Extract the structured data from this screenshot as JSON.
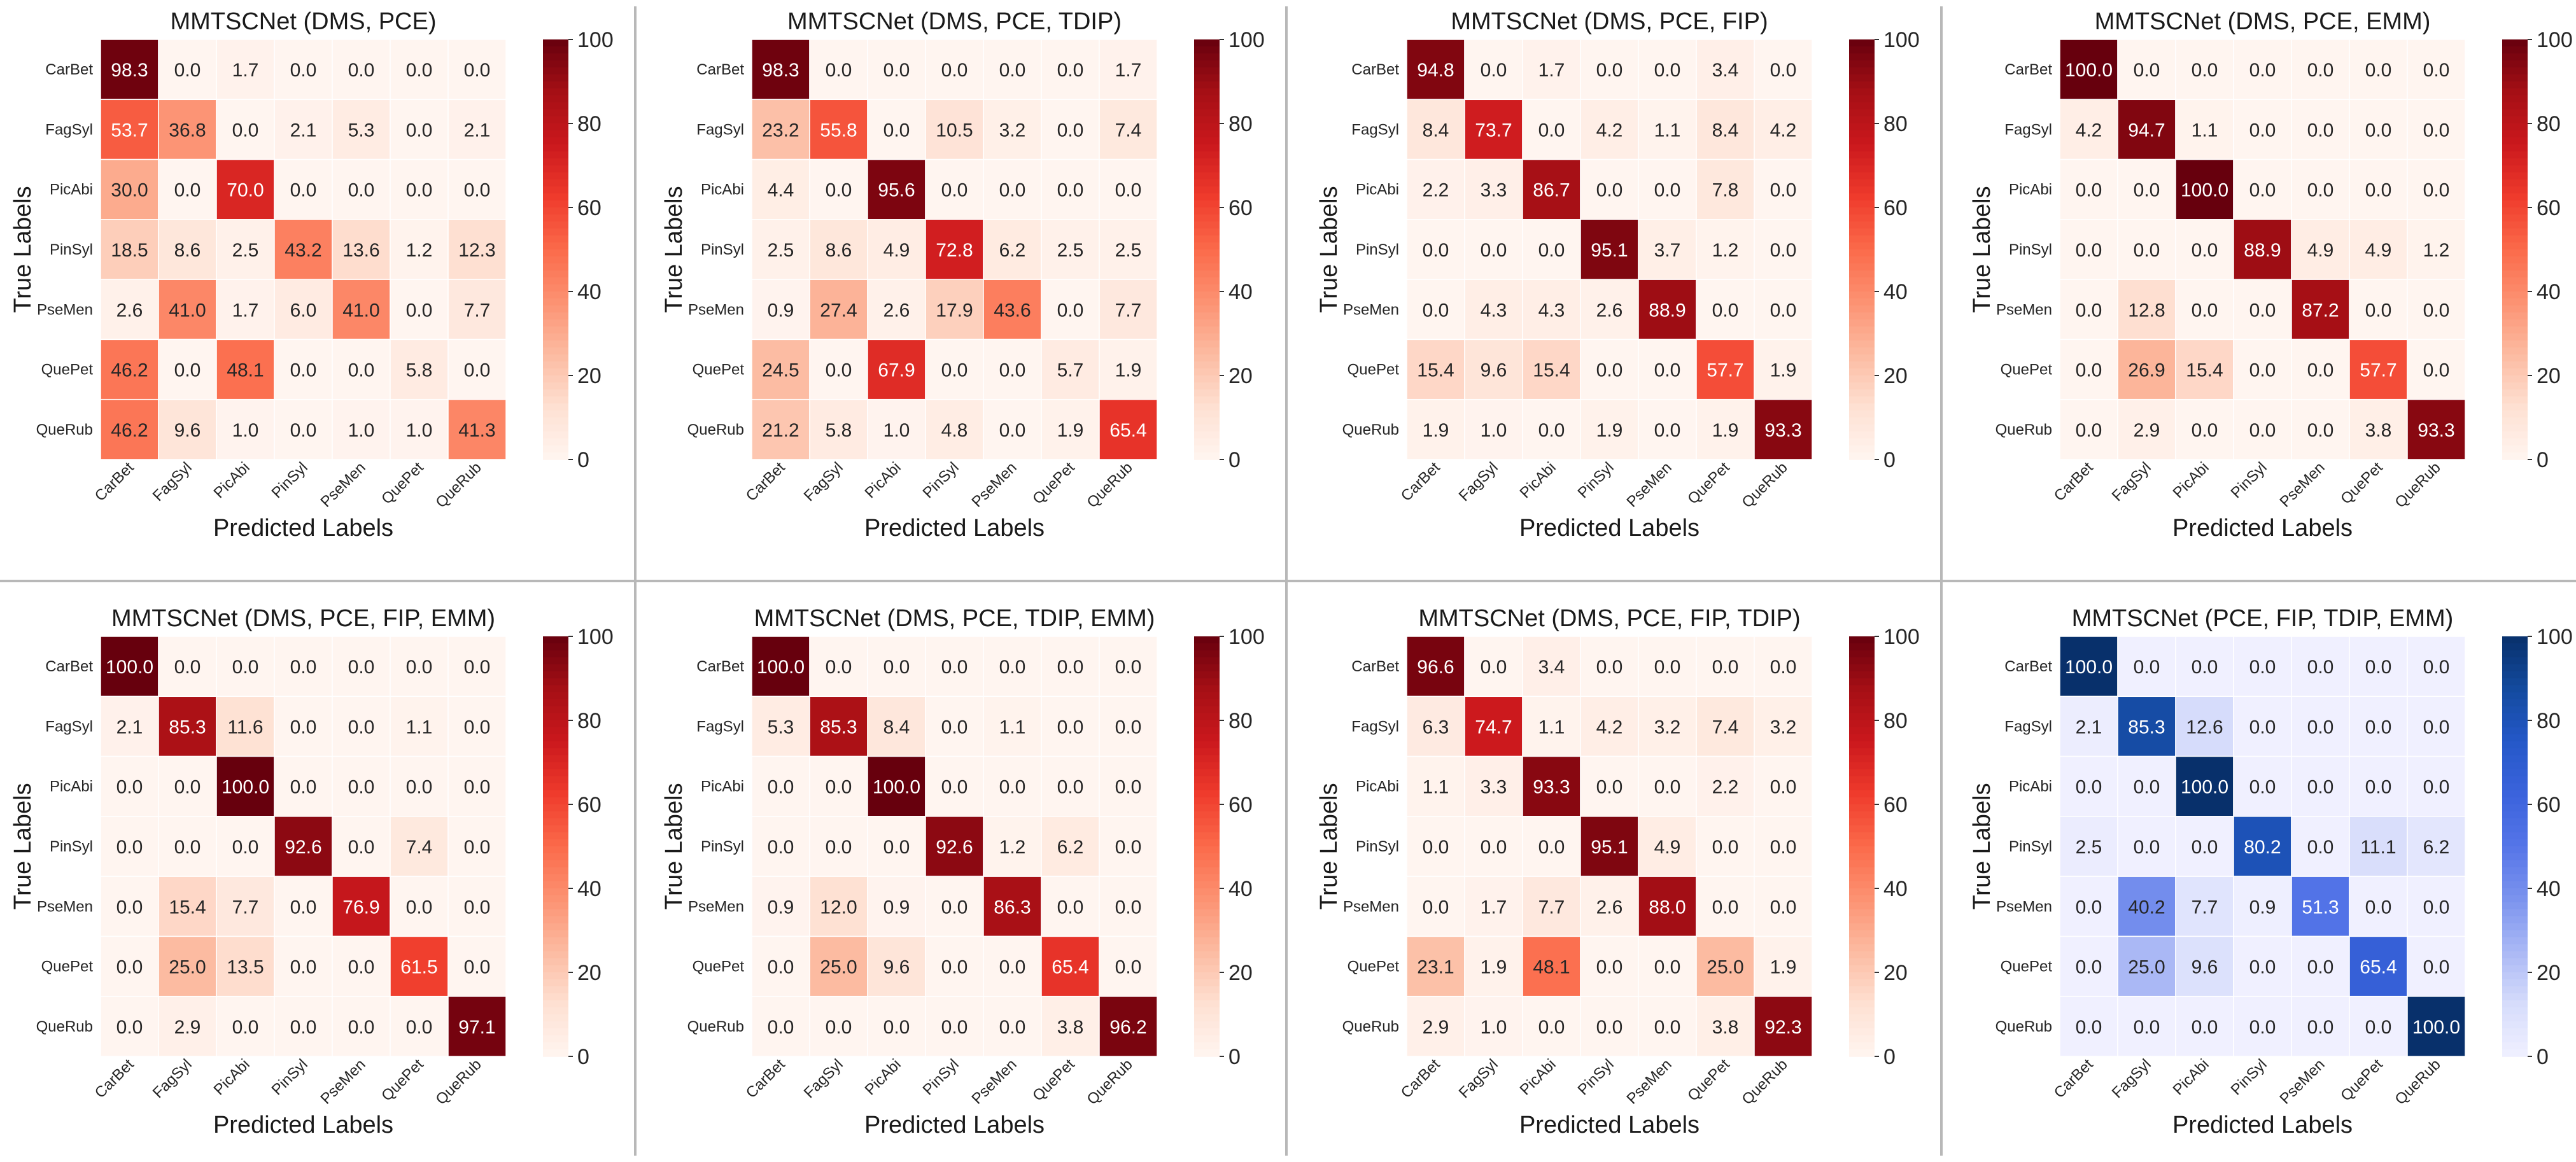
{
  "figure": {
    "xlabel": "Predicted Labels",
    "ylabel": "True Labels"
  },
  "colorbar_ticks": [
    "0",
    "20",
    "40",
    "60",
    "80",
    "100"
  ],
  "chart_data": [
    {
      "type": "heatmap",
      "title": "MMTSCNet (DMS, PCE)",
      "colormap": "Reds",
      "xlabel": "Predicted Labels",
      "ylabel": "True Labels",
      "categories": [
        "CarBet",
        "FagSyl",
        "PicAbi",
        "PinSyl",
        "PseMen",
        "QuePet",
        "QueRub"
      ],
      "vmin": 0,
      "vmax": 100,
      "values": [
        [
          98.3,
          0.0,
          1.7,
          0.0,
          0.0,
          0.0,
          0.0
        ],
        [
          53.7,
          36.8,
          0.0,
          2.1,
          5.3,
          0.0,
          2.1
        ],
        [
          30.0,
          0.0,
          70.0,
          0.0,
          0.0,
          0.0,
          0.0
        ],
        [
          18.5,
          8.6,
          2.5,
          43.2,
          13.6,
          1.2,
          12.3
        ],
        [
          2.6,
          41.0,
          1.7,
          6.0,
          41.0,
          0.0,
          7.7
        ],
        [
          46.2,
          0.0,
          48.1,
          0.0,
          0.0,
          5.8,
          0.0
        ],
        [
          46.2,
          9.6,
          1.0,
          0.0,
          1.0,
          1.0,
          41.3
        ]
      ]
    },
    {
      "type": "heatmap",
      "title": "MMTSCNet (DMS, PCE, TDIP)",
      "colormap": "Reds",
      "xlabel": "Predicted Labels",
      "ylabel": "True Labels",
      "categories": [
        "CarBet",
        "FagSyl",
        "PicAbi",
        "PinSyl",
        "PseMen",
        "QuePet",
        "QueRub"
      ],
      "vmin": 0,
      "vmax": 100,
      "values": [
        [
          98.3,
          0.0,
          0.0,
          0.0,
          0.0,
          0.0,
          1.7
        ],
        [
          23.2,
          55.8,
          0.0,
          10.5,
          3.2,
          0.0,
          7.4
        ],
        [
          4.4,
          0.0,
          95.6,
          0.0,
          0.0,
          0.0,
          0.0
        ],
        [
          2.5,
          8.6,
          4.9,
          72.8,
          6.2,
          2.5,
          2.5
        ],
        [
          0.9,
          27.4,
          2.6,
          17.9,
          43.6,
          0.0,
          7.7
        ],
        [
          24.5,
          0.0,
          67.9,
          0.0,
          0.0,
          5.7,
          1.9
        ],
        [
          21.2,
          5.8,
          1.0,
          4.8,
          0.0,
          1.9,
          65.4
        ]
      ]
    },
    {
      "type": "heatmap",
      "title": "MMTSCNet (DMS, PCE, FIP)",
      "colormap": "Reds",
      "xlabel": "Predicted Labels",
      "ylabel": "True Labels",
      "categories": [
        "CarBet",
        "FagSyl",
        "PicAbi",
        "PinSyl",
        "PseMen",
        "QuePet",
        "QueRub"
      ],
      "vmin": 0,
      "vmax": 100,
      "values": [
        [
          94.8,
          0.0,
          1.7,
          0.0,
          0.0,
          3.4,
          0.0
        ],
        [
          8.4,
          73.7,
          0.0,
          4.2,
          1.1,
          8.4,
          4.2
        ],
        [
          2.2,
          3.3,
          86.7,
          0.0,
          0.0,
          7.8,
          0.0
        ],
        [
          0.0,
          0.0,
          0.0,
          95.1,
          3.7,
          1.2,
          0.0
        ],
        [
          0.0,
          4.3,
          4.3,
          2.6,
          88.9,
          0.0,
          0.0
        ],
        [
          15.4,
          9.6,
          15.4,
          0.0,
          0.0,
          57.7,
          1.9
        ],
        [
          1.9,
          1.0,
          0.0,
          1.9,
          0.0,
          1.9,
          93.3
        ]
      ]
    },
    {
      "type": "heatmap",
      "title": "MMTSCNet (DMS, PCE, EMM)",
      "colormap": "Reds",
      "xlabel": "Predicted Labels",
      "ylabel": "True Labels",
      "categories": [
        "CarBet",
        "FagSyl",
        "PicAbi",
        "PinSyl",
        "PseMen",
        "QuePet",
        "QueRub"
      ],
      "vmin": 0,
      "vmax": 100,
      "values": [
        [
          100.0,
          0.0,
          0.0,
          0.0,
          0.0,
          0.0,
          0.0
        ],
        [
          4.2,
          94.7,
          1.1,
          0.0,
          0.0,
          0.0,
          0.0
        ],
        [
          0.0,
          0.0,
          100.0,
          0.0,
          0.0,
          0.0,
          0.0
        ],
        [
          0.0,
          0.0,
          0.0,
          88.9,
          4.9,
          4.9,
          1.2
        ],
        [
          0.0,
          12.8,
          0.0,
          0.0,
          87.2,
          0.0,
          0.0
        ],
        [
          0.0,
          26.9,
          15.4,
          0.0,
          0.0,
          57.7,
          0.0
        ],
        [
          0.0,
          2.9,
          0.0,
          0.0,
          0.0,
          3.8,
          93.3
        ]
      ]
    },
    {
      "type": "heatmap",
      "title": "MMTSCNet (DMS, PCE, FIP, EMM)",
      "colormap": "Reds",
      "xlabel": "Predicted Labels",
      "ylabel": "True Labels",
      "categories": [
        "CarBet",
        "FagSyl",
        "PicAbi",
        "PinSyl",
        "PseMen",
        "QuePet",
        "QueRub"
      ],
      "vmin": 0,
      "vmax": 100,
      "values": [
        [
          100.0,
          0.0,
          0.0,
          0.0,
          0.0,
          0.0,
          0.0
        ],
        [
          2.1,
          85.3,
          11.6,
          0.0,
          0.0,
          1.1,
          0.0
        ],
        [
          0.0,
          0.0,
          100.0,
          0.0,
          0.0,
          0.0,
          0.0
        ],
        [
          0.0,
          0.0,
          0.0,
          92.6,
          0.0,
          7.4,
          0.0
        ],
        [
          0.0,
          15.4,
          7.7,
          0.0,
          76.9,
          0.0,
          0.0
        ],
        [
          0.0,
          25.0,
          13.5,
          0.0,
          0.0,
          61.5,
          0.0
        ],
        [
          0.0,
          2.9,
          0.0,
          0.0,
          0.0,
          0.0,
          97.1
        ]
      ]
    },
    {
      "type": "heatmap",
      "title": "MMTSCNet (DMS, PCE, TDIP, EMM)",
      "colormap": "Reds",
      "xlabel": "Predicted Labels",
      "ylabel": "True Labels",
      "categories": [
        "CarBet",
        "FagSyl",
        "PicAbi",
        "PinSyl",
        "PseMen",
        "QuePet",
        "QueRub"
      ],
      "vmin": 0,
      "vmax": 100,
      "values": [
        [
          100.0,
          0.0,
          0.0,
          0.0,
          0.0,
          0.0,
          0.0
        ],
        [
          5.3,
          85.3,
          8.4,
          0.0,
          1.1,
          0.0,
          0.0
        ],
        [
          0.0,
          0.0,
          100.0,
          0.0,
          0.0,
          0.0,
          0.0
        ],
        [
          0.0,
          0.0,
          0.0,
          92.6,
          1.2,
          6.2,
          0.0
        ],
        [
          0.9,
          12.0,
          0.9,
          0.0,
          86.3,
          0.0,
          0.0
        ],
        [
          0.0,
          25.0,
          9.6,
          0.0,
          0.0,
          65.4,
          0.0
        ],
        [
          0.0,
          0.0,
          0.0,
          0.0,
          0.0,
          3.8,
          96.2
        ]
      ]
    },
    {
      "type": "heatmap",
      "title": "MMTSCNet (DMS, PCE, FIP, TDIP)",
      "colormap": "Reds",
      "xlabel": "Predicted Labels",
      "ylabel": "True Labels",
      "categories": [
        "CarBet",
        "FagSyl",
        "PicAbi",
        "PinSyl",
        "PseMen",
        "QuePet",
        "QueRub"
      ],
      "vmin": 0,
      "vmax": 100,
      "values": [
        [
          96.6,
          0.0,
          3.4,
          0.0,
          0.0,
          0.0,
          0.0
        ],
        [
          6.3,
          74.7,
          1.1,
          4.2,
          3.2,
          7.4,
          3.2
        ],
        [
          1.1,
          3.3,
          93.3,
          0.0,
          0.0,
          2.2,
          0.0
        ],
        [
          0.0,
          0.0,
          0.0,
          95.1,
          4.9,
          0.0,
          0.0
        ],
        [
          0.0,
          1.7,
          7.7,
          2.6,
          88.0,
          0.0,
          0.0
        ],
        [
          23.1,
          1.9,
          48.1,
          0.0,
          0.0,
          25.0,
          1.9
        ],
        [
          2.9,
          1.0,
          0.0,
          0.0,
          0.0,
          3.8,
          92.3
        ]
      ]
    },
    {
      "type": "heatmap",
      "title": "MMTSCNet (PCE, FIP, TDIP, EMM)",
      "colormap": "Blues",
      "xlabel": "Predicted Labels",
      "ylabel": "True Labels",
      "categories": [
        "CarBet",
        "FagSyl",
        "PicAbi",
        "PinSyl",
        "PseMen",
        "QuePet",
        "QueRub"
      ],
      "vmin": 0,
      "vmax": 100,
      "values": [
        [
          100.0,
          0.0,
          0.0,
          0.0,
          0.0,
          0.0,
          0.0
        ],
        [
          2.1,
          85.3,
          12.6,
          0.0,
          0.0,
          0.0,
          0.0
        ],
        [
          0.0,
          0.0,
          100.0,
          0.0,
          0.0,
          0.0,
          0.0
        ],
        [
          2.5,
          0.0,
          0.0,
          80.2,
          0.0,
          11.1,
          6.2
        ],
        [
          0.0,
          40.2,
          7.7,
          0.9,
          51.3,
          0.0,
          0.0
        ],
        [
          0.0,
          25.0,
          9.6,
          0.0,
          0.0,
          65.4,
          0.0
        ],
        [
          0.0,
          0.0,
          0.0,
          0.0,
          0.0,
          0.0,
          100.0
        ]
      ]
    }
  ],
  "colors": {
    "reds": [
      "#fff5f0",
      "#fee0d2",
      "#fcbba1",
      "#fc9272",
      "#fb6a4a",
      "#ef3b2c",
      "#cb181d",
      "#a50f15",
      "#67000d"
    ],
    "blues": [
      "#f0f0ff",
      "#d6dcfb",
      "#aab8f5",
      "#7b93ee",
      "#5575e8",
      "#3b63dc",
      "#2458c8",
      "#134a9e",
      "#08306b"
    ],
    "separator": "#b8b8b8",
    "cell_border": "#ffffff"
  }
}
